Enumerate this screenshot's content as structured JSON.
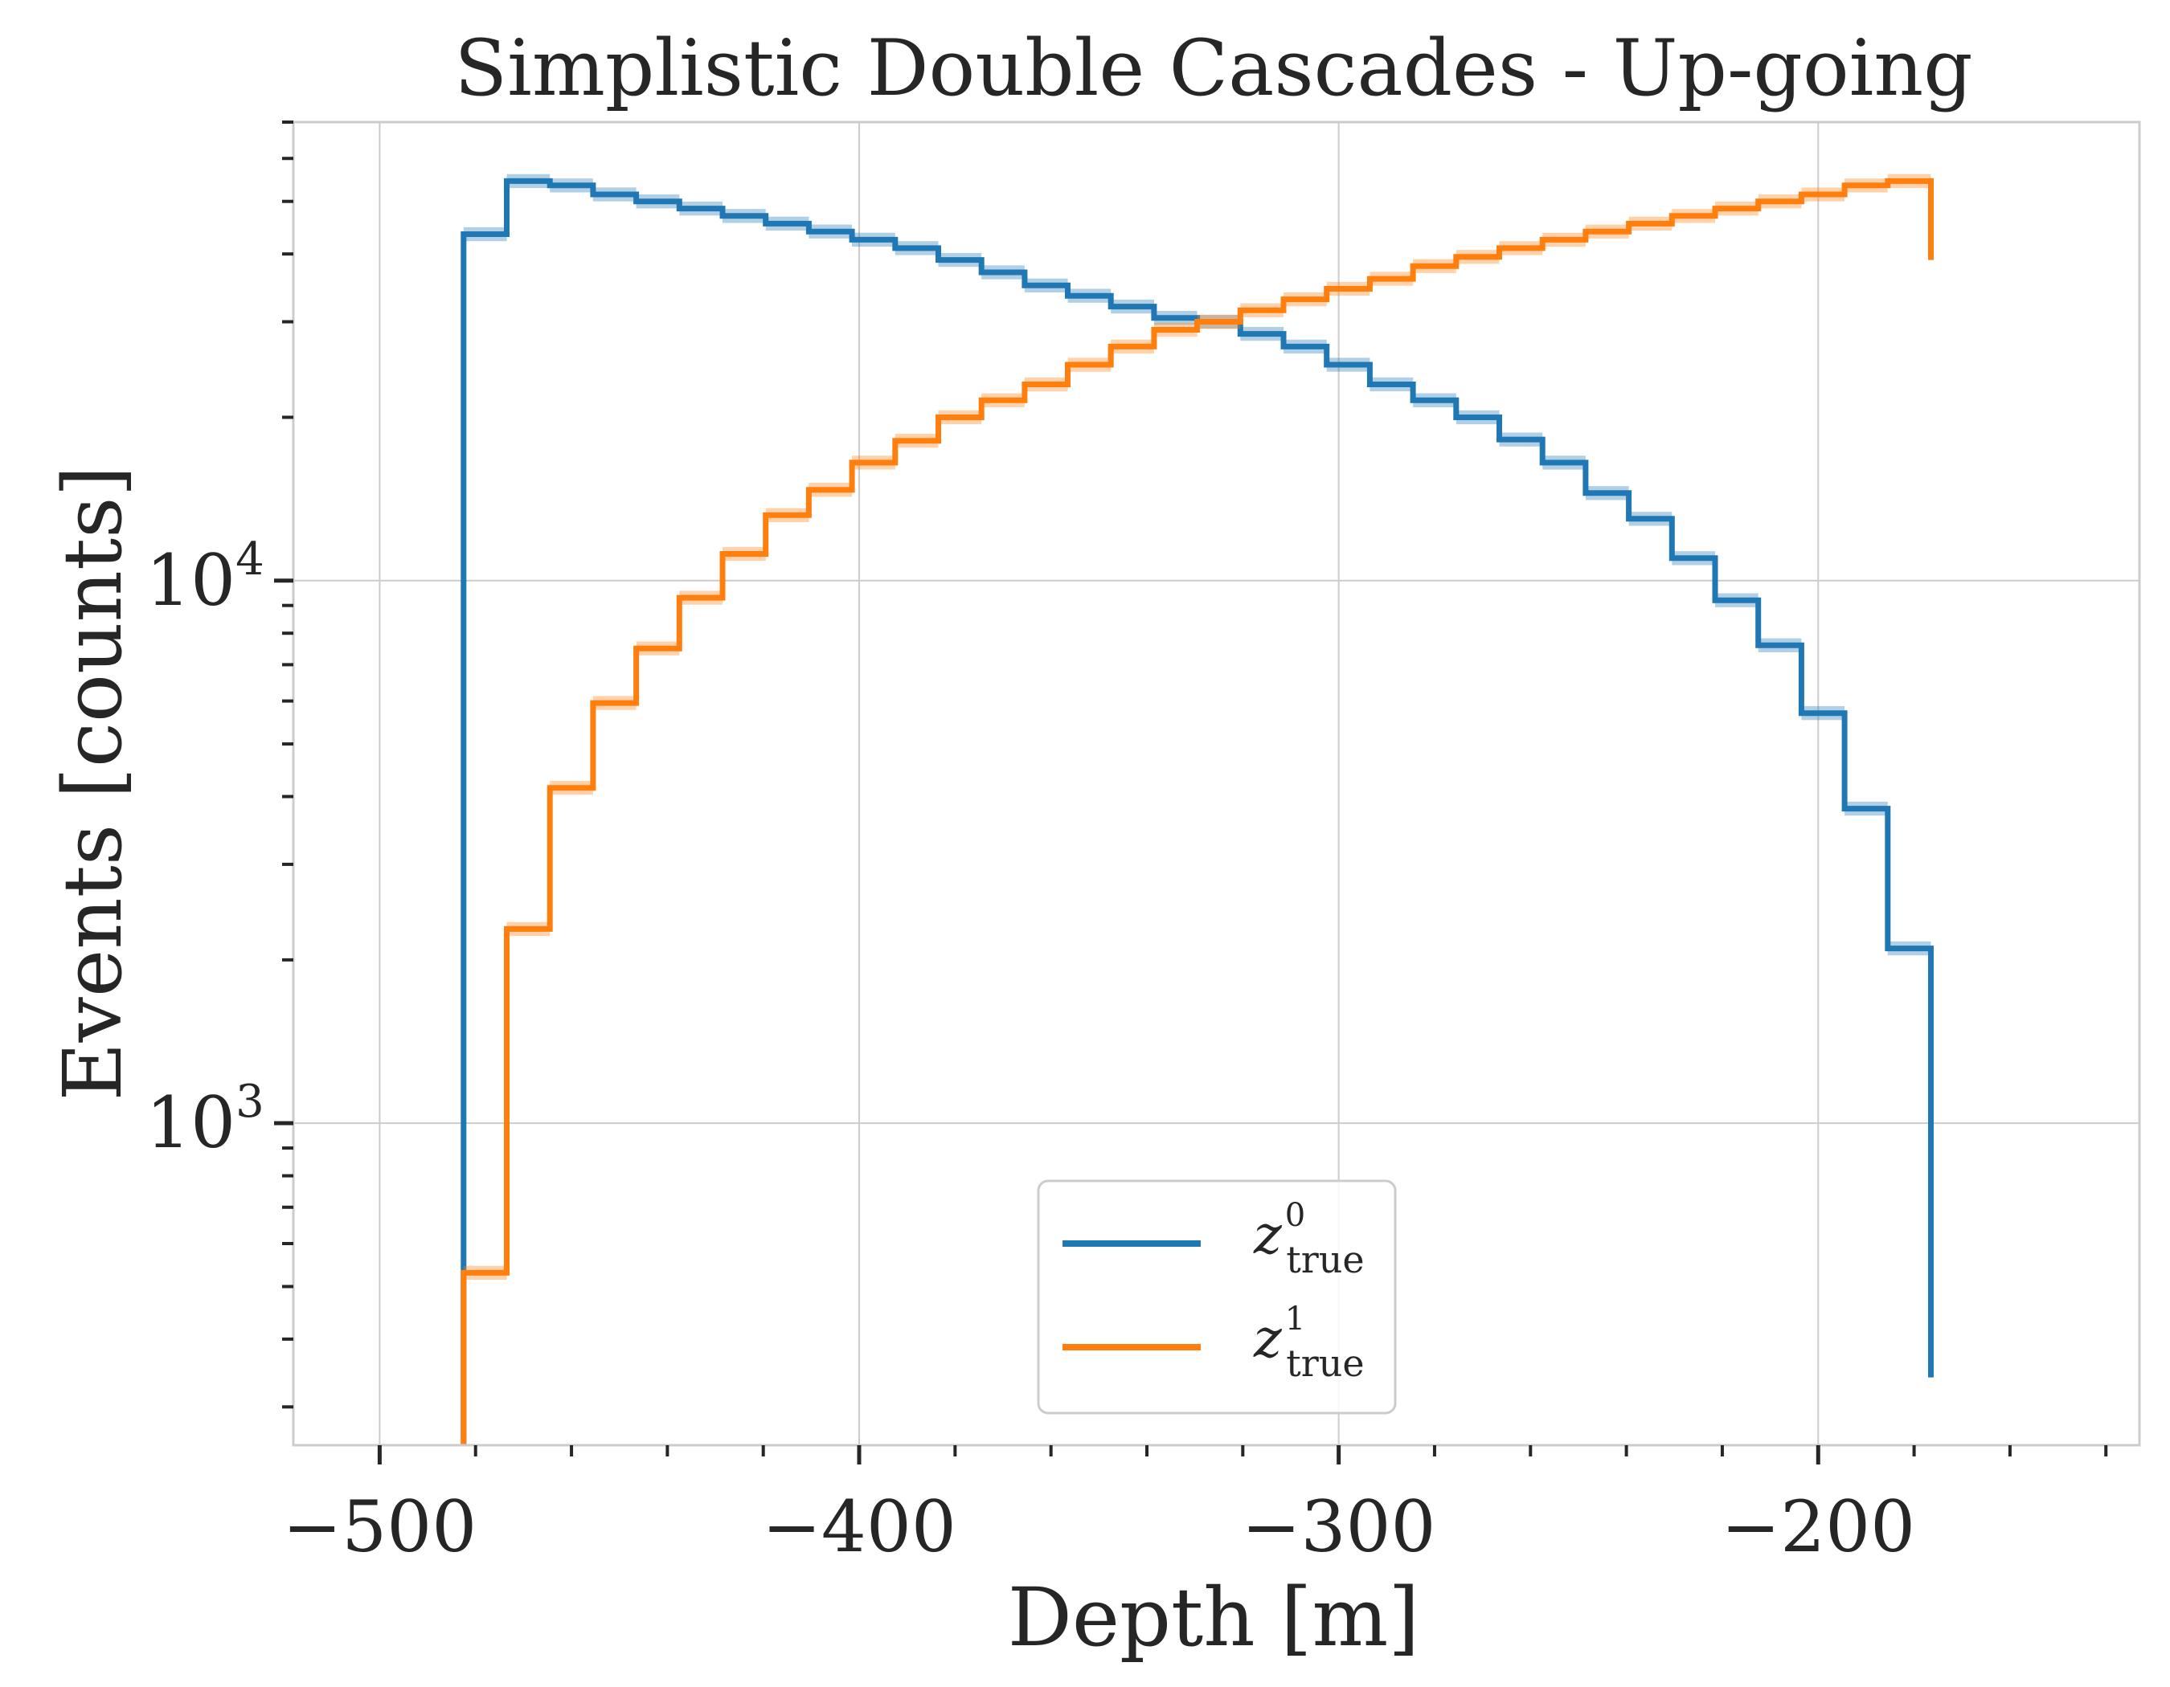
{
  "chart_data": {
    "type": "line",
    "style": "step histogram",
    "title": "Simplistic Double Cascades - Up-going",
    "xlabel": "Depth [m]",
    "ylabel": "Events [counts]",
    "xlim": [
      -518,
      -133
    ],
    "ylim": [
      255,
      70000
    ],
    "yscale": "log",
    "grid": true,
    "legend_position": "lower-center",
    "x_ticks": [
      {
        "value": -500,
        "label": "−500"
      },
      {
        "value": -400,
        "label": "−400"
      },
      {
        "value": -300,
        "label": "−300"
      },
      {
        "value": -200,
        "label": "−200"
      }
    ],
    "y_ticks": [
      {
        "value": 1000,
        "base": "10",
        "exp": "3"
      },
      {
        "value": 10000,
        "base": "10",
        "exp": "4"
      }
    ],
    "bin_edges": [
      -482.5,
      -473.5,
      -464.5,
      -455.5,
      -446.5,
      -437.5,
      -428.5,
      -419.5,
      -410.5,
      -401.5,
      -392.5,
      -383.5,
      -374.5,
      -365.5,
      -356.5,
      -347.5,
      -338.5,
      -329.5,
      -320.5,
      -311.5,
      -302.5,
      -293.5,
      -284.5,
      -275.5,
      -266.5,
      -257.5,
      -248.5,
      -239.5,
      -230.5,
      -221.5,
      -212.5,
      -203.5,
      -194.5,
      -185.5,
      -176.5
    ],
    "series": [
      {
        "name": "z",
        "name_sup": "0",
        "name_sub": "true",
        "color": "#1f77b4",
        "values": [
          43500,
          54500,
          53500,
          51500,
          50000,
          48500,
          47000,
          45500,
          44000,
          42500,
          41000,
          39000,
          37000,
          35000,
          33500,
          32000,
          30500,
          30000,
          28500,
          27000,
          25000,
          23000,
          21500,
          20000,
          18200,
          16500,
          14500,
          13000,
          11000,
          9200,
          7600,
          5700,
          3800,
          2100,
          340
        ]
      },
      {
        "name": "z",
        "name_sup": "1",
        "name_sub": "true",
        "color": "#ff7f0e",
        "values": [
          530,
          2280,
          4150,
          5950,
          7500,
          9300,
          11200,
          13200,
          14700,
          16500,
          18100,
          20000,
          21500,
          23000,
          25000,
          27000,
          29000,
          30000,
          31500,
          33000,
          34500,
          36000,
          38000,
          39500,
          41000,
          42500,
          44000,
          45500,
          47000,
          48500,
          50000,
          51500,
          53500,
          54500,
          39000
        ]
      }
    ]
  }
}
